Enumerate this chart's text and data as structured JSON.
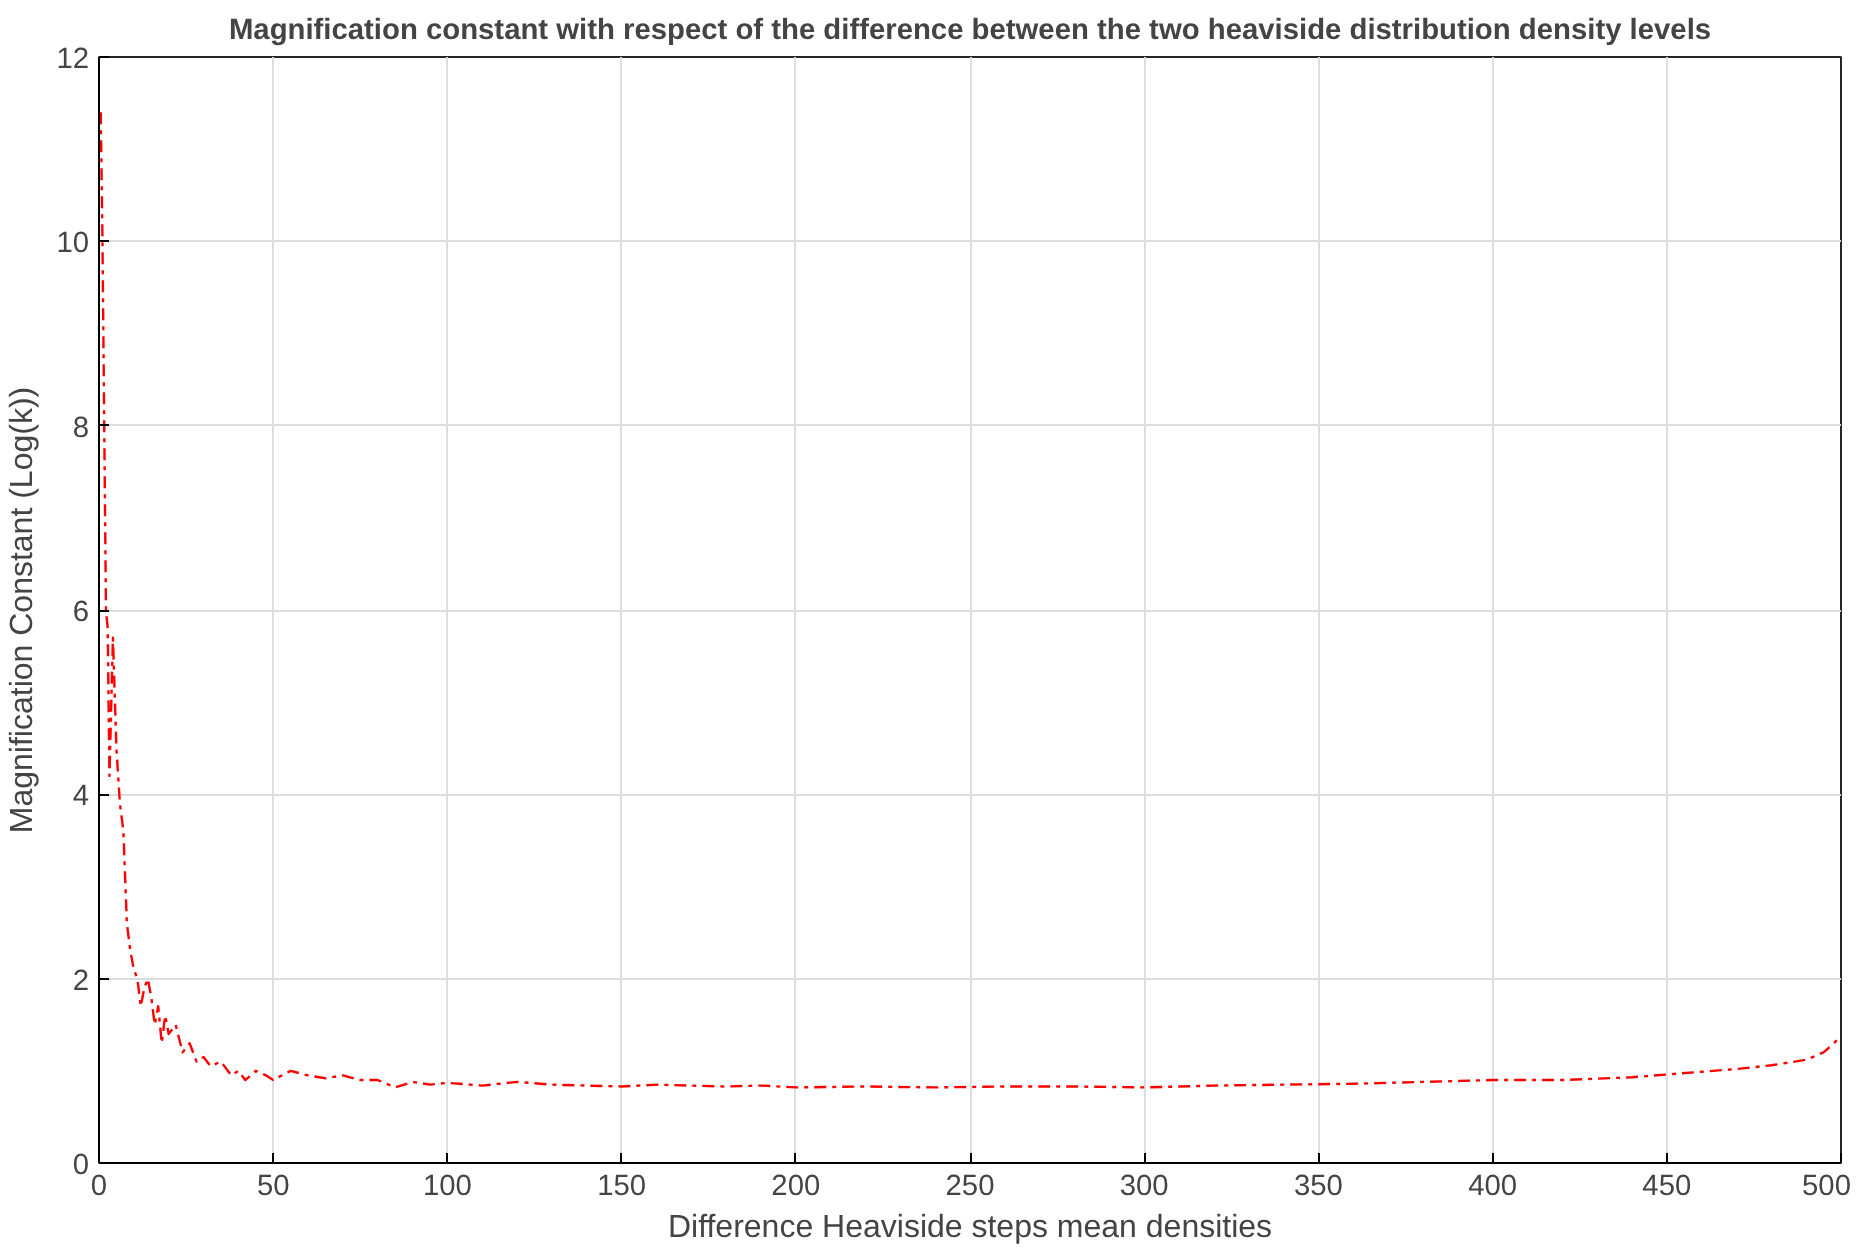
{
  "chart_data": {
    "type": "line",
    "title": "Magnification constant with respect of the difference between the two heaviside distribution density levels",
    "xlabel": "Difference Heaviside steps mean densities",
    "ylabel": "Magnification Constant (Log(k))",
    "x": [
      0.5,
      1,
      1.5,
      2,
      2.5,
      3,
      4,
      5,
      6,
      7,
      8,
      9,
      10,
      11,
      12,
      13,
      14,
      15,
      16,
      17,
      18,
      19,
      20,
      22,
      24,
      26,
      28,
      30,
      32,
      35,
      38,
      40,
      42,
      45,
      48,
      50,
      55,
      60,
      65,
      70,
      75,
      80,
      85,
      90,
      95,
      100,
      110,
      120,
      130,
      140,
      150,
      160,
      170,
      180,
      190,
      200,
      220,
      240,
      260,
      280,
      300,
      320,
      340,
      360,
      380,
      400,
      420,
      440,
      450,
      460,
      470,
      480,
      490,
      495,
      498,
      500
    ],
    "series": [
      {
        "color": "#ff0000",
        "values": [
          11.4,
          10.0,
          8.0,
          6.0,
          5.8,
          4.2,
          5.7,
          4.5,
          3.9,
          3.6,
          2.6,
          2.3,
          2.1,
          2.0,
          1.7,
          1.9,
          2.0,
          1.8,
          1.5,
          1.7,
          1.3,
          1.6,
          1.4,
          1.5,
          1.2,
          1.3,
          1.1,
          1.15,
          1.05,
          1.1,
          0.95,
          1.0,
          0.9,
          1.0,
          0.95,
          0.9,
          1.0,
          0.95,
          0.92,
          0.95,
          0.9,
          0.9,
          0.82,
          0.88,
          0.85,
          0.87,
          0.84,
          0.88,
          0.85,
          0.84,
          0.83,
          0.85,
          0.84,
          0.83,
          0.84,
          0.82,
          0.83,
          0.82,
          0.83,
          0.83,
          0.82,
          0.84,
          0.85,
          0.86,
          0.88,
          0.9,
          0.9,
          0.93,
          0.96,
          0.99,
          1.02,
          1.06,
          1.12,
          1.2,
          1.3,
          1.38
        ]
      }
    ],
    "xlim": [
      0,
      500
    ],
    "ylim": [
      0,
      12
    ],
    "xticks": [
      0,
      50,
      100,
      150,
      200,
      250,
      300,
      350,
      400,
      450,
      500
    ],
    "yticks": [
      0,
      2,
      4,
      6,
      8,
      10,
      12
    ],
    "grid": true,
    "line_style": "dashdot",
    "marker": "none"
  }
}
